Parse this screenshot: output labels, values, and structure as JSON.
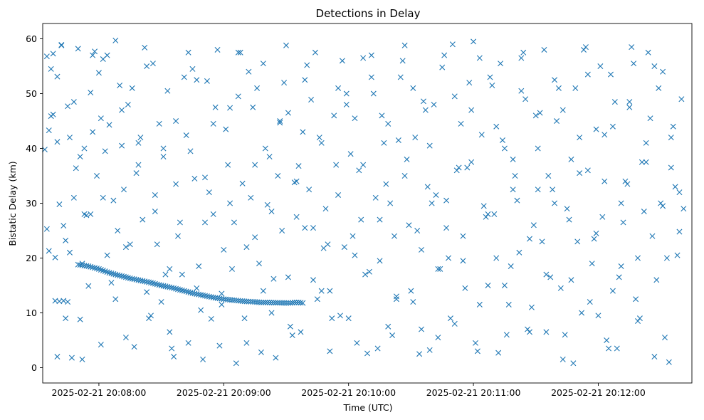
{
  "chart_data": {
    "type": "scatter",
    "title": "Detections in Delay",
    "xlabel": "Time (UTC)",
    "ylabel": "Bistatic Delay (km)",
    "x_tick_labels": [
      "2025-02-21 20:08:00",
      "2025-02-21 20:09:00",
      "2025-02-21 20:10:00",
      "2025-02-21 20:11:00",
      "2025-02-21 20:12:00"
    ],
    "y_tick_labels": [
      "0",
      "10",
      "20",
      "30",
      "40",
      "50",
      "60"
    ],
    "x_axis": "time",
    "xlim": [
      "2025-02-21 20:07:33",
      "2025-02-21 20:12:45"
    ],
    "ylim": [
      -2.8,
      62.8
    ],
    "grid": false,
    "marker": "x",
    "color": "#1f77b4",
    "track": {
      "description_visible": false,
      "x": [
        "20:07:39",
        "20:07:41",
        "20:07:43",
        "20:07:45",
        "20:07:50",
        "20:07:55",
        "20:08:00",
        "20:08:05",
        "20:08:10",
        "20:08:15",
        "20:08:20",
        "20:08:25",
        "20:08:30",
        "20:08:35",
        "20:08:40",
        "20:08:45",
        "20:08:50",
        "20:08:55",
        "20:09:00",
        "20:09:05",
        "20:09:10",
        "20:09:15",
        "20:09:18",
        "20:09:20",
        "20:09:30",
        "20:09:32",
        "20:09:34",
        "20:09:36",
        "20:09:38"
      ],
      "y": [
        12.2,
        12.1,
        12.2,
        12.0,
        18.8,
        18.5,
        18.0,
        17.3,
        16.8,
        16.3,
        15.9,
        15.5,
        15.0,
        14.6,
        14.1,
        13.6,
        13.2,
        12.8,
        12.5,
        12.3,
        12.1,
        12.0,
        11.9,
        11.9,
        11.8,
        11.8,
        11.9,
        11.9,
        11.8
      ]
    },
    "series": [
      {
        "x": [
          "20:07:35",
          "20:07:36",
          "20:07:38",
          "20:07:40",
          "20:07:42",
          "20:07:44",
          "20:07:46",
          "20:07:48",
          "20:07:50",
          "20:07:52",
          "20:07:55",
          "20:07:57",
          "20:08:00",
          "20:08:02",
          "20:08:05",
          "20:08:08",
          "20:08:11",
          "20:08:13",
          "20:08:16",
          "20:08:19",
          "20:08:22",
          "20:08:25",
          "20:08:27",
          "20:08:30",
          "20:08:33",
          "20:08:36",
          "20:08:39",
          "20:08:42",
          "20:08:45",
          "20:08:48",
          "20:08:51",
          "20:08:54",
          "20:08:57",
          "20:09:00",
          "20:09:03",
          "20:09:06",
          "20:09:09",
          "20:09:12",
          "20:09:15",
          "20:09:18",
          "20:09:21",
          "20:09:24",
          "20:09:27",
          "20:09:30",
          "20:09:33",
          "20:09:36",
          "20:09:39",
          "20:09:42",
          "20:09:45",
          "20:09:48",
          "20:09:51",
          "20:09:54",
          "20:09:57",
          "20:10:00",
          "20:10:03",
          "20:10:06",
          "20:10:09",
          "20:10:12",
          "20:10:15",
          "20:10:18",
          "20:10:21",
          "20:10:24",
          "20:10:27",
          "20:10:30",
          "20:10:33",
          "20:10:36",
          "20:10:39",
          "20:10:42",
          "20:10:45",
          "20:10:48",
          "20:10:51",
          "20:10:54",
          "20:10:57",
          "20:11:00",
          "20:11:03",
          "20:11:06",
          "20:11:09",
          "20:11:12",
          "20:11:15",
          "20:11:18",
          "20:11:21",
          "20:11:24",
          "20:11:27",
          "20:11:30",
          "20:11:33",
          "20:11:36",
          "20:11:39",
          "20:11:42",
          "20:11:45",
          "20:11:48",
          "20:11:51",
          "20:11:54",
          "20:11:57",
          "20:12:00",
          "20:12:03",
          "20:12:06",
          "20:12:09",
          "20:12:12",
          "20:12:15",
          "20:12:18",
          "20:12:21",
          "20:12:24",
          "20:12:27",
          "20:12:30",
          "20:12:33",
          "20:12:36",
          "20:12:39",
          "20:12:41"
        ],
        "y": [
          56.8,
          21.3,
          46.2,
          2.0,
          58.8,
          9.0,
          42.0,
          31.0,
          58.2,
          1.5,
          14.9,
          57.0,
          53.8,
          31.0,
          44.3,
          59.7,
          40.5,
          22.0,
          51.0,
          37.0,
          58.4,
          9.5,
          31.5,
          12.0,
          50.5,
          2.0,
          26.5,
          42.4,
          54.5,
          18.5,
          34.7,
          8.9,
          58.0,
          21.5,
          47.4,
          0.8,
          33.6,
          54.0,
          23.8,
          2.8,
          29.7,
          16.2,
          44.7,
          58.8,
          5.9,
          36.8,
          25.5,
          48.9,
          12.5,
          21.8,
          3.0,
          37.0,
          56.0,
          9.0,
          45.5,
          27.0,
          2.6,
          50.0,
          19.5,
          33.5,
          5.9,
          41.5,
          58.8,
          14.0,
          25.0,
          48.6,
          3.2,
          31.5,
          54.8,
          20.0,
          8.0,
          44.5,
          36.5,
          59.5,
          11.5,
          27.5,
          51.5,
          2.7,
          40.0,
          18.5,
          30.5,
          57.5,
          6.5,
          46.0,
          23.0,
          35.0,
          52.5,
          14.5,
          29.0,
          0.8,
          42.0,
          58.5,
          19.0,
          9.5,
          34.0,
          53.5,
          3.5,
          26.5,
          47.5,
          12.5,
          37.5,
          57.5,
          2.0,
          30.0,
          20.0,
          44.0,
          24.8,
          29.0
        ]
      },
      {
        "x": [
          "20:07:34",
          "20:07:37",
          "20:07:39",
          "20:07:41",
          "20:07:43",
          "20:07:45",
          "20:07:47",
          "20:07:49",
          "20:07:51",
          "20:07:53",
          "20:07:56",
          "20:07:58",
          "20:08:01",
          "20:08:03",
          "20:08:06",
          "20:08:09",
          "20:08:12",
          "20:08:14",
          "20:08:17",
          "20:08:20",
          "20:08:23",
          "20:08:26",
          "20:08:28",
          "20:08:31",
          "20:08:34",
          "20:08:37",
          "20:08:40",
          "20:08:43",
          "20:08:46",
          "20:08:49",
          "20:08:52",
          "20:08:55",
          "20:08:58",
          "20:09:01",
          "20:09:04",
          "20:09:07",
          "20:09:10",
          "20:09:13",
          "20:09:16",
          "20:09:19",
          "20:09:22",
          "20:09:25",
          "20:09:28",
          "20:09:31",
          "20:09:34",
          "20:09:37",
          "20:09:40",
          "20:09:43",
          "20:09:46",
          "20:09:49",
          "20:09:52",
          "20:09:55",
          "20:09:58",
          "20:10:01",
          "20:10:04",
          "20:10:07",
          "20:10:10",
          "20:10:13",
          "20:10:16",
          "20:10:19",
          "20:10:22",
          "20:10:25",
          "20:10:28",
          "20:10:31",
          "20:10:34",
          "20:10:37",
          "20:10:40",
          "20:10:43",
          "20:10:46",
          "20:10:49",
          "20:10:52",
          "20:10:55",
          "20:10:58",
          "20:11:01",
          "20:11:04",
          "20:11:07",
          "20:11:10",
          "20:11:13",
          "20:11:16",
          "20:11:19",
          "20:11:22",
          "20:11:25",
          "20:11:28",
          "20:11:31",
          "20:11:34",
          "20:11:37",
          "20:11:40",
          "20:11:43",
          "20:11:46",
          "20:11:49",
          "20:11:52",
          "20:11:55",
          "20:11:58",
          "20:12:01",
          "20:12:04",
          "20:12:07",
          "20:12:10",
          "20:12:13",
          "20:12:16",
          "20:12:19",
          "20:12:22",
          "20:12:25",
          "20:12:28",
          "20:12:31",
          "20:12:34",
          "20:12:37",
          "20:12:40"
        ],
        "y": [
          39.8,
          54.5,
          20.1,
          29.8,
          25.9,
          47.7,
          1.8,
          36.4,
          8.8,
          40.0,
          28.0,
          57.7,
          4.2,
          39.5,
          15.5,
          25.0,
          32.5,
          48.0,
          3.8,
          42.0,
          13.8,
          55.5,
          22.5,
          38.5,
          6.5,
          45.0,
          17.0,
          57.5,
          34.5,
          10.5,
          52.3,
          28.0,
          4.0,
          43.5,
          18.0,
          57.5,
          9.0,
          31.0,
          51.0,
          14.0,
          38.5,
          1.8,
          25.0,
          46.5,
          33.8,
          6.5,
          55.2,
          16.0,
          42.0,
          29.0,
          9.0,
          51.0,
          22.0,
          39.0,
          4.5,
          56.5,
          17.5,
          31.0,
          46.0,
          7.5,
          24.0,
          53.0,
          38.0,
          12.0,
          2.5,
          47.0,
          30.0,
          18.0,
          57.0,
          9.0,
          36.0,
          24.0,
          52.0,
          4.5,
          42.5,
          15.0,
          28.0,
          55.5,
          6.0,
          38.0,
          21.0,
          49.0,
          11.0,
          32.5,
          58.0,
          16.5,
          45.0,
          1.5,
          27.0,
          51.0,
          10.0,
          36.0,
          23.5,
          55.0,
          5.0,
          44.0,
          16.5,
          34.0,
          58.5,
          8.5,
          28.5,
          45.5,
          16.0,
          54.0,
          1.0,
          33.0,
          49.0
        ]
      },
      {
        "x": [
          "20:07:36",
          "20:07:38",
          "20:07:40",
          "20:07:44",
          "20:07:48",
          "20:07:52",
          "20:07:54",
          "20:07:57",
          "20:08:02",
          "20:08:04",
          "20:08:07",
          "20:08:10",
          "20:08:13",
          "20:08:18",
          "20:08:21",
          "20:08:24",
          "20:08:29",
          "20:08:32",
          "20:08:35",
          "20:08:38",
          "20:08:41",
          "20:08:44",
          "20:08:47",
          "20:08:50",
          "20:08:53",
          "20:08:56",
          "20:08:59",
          "20:09:02",
          "20:09:05",
          "20:09:08",
          "20:09:11",
          "20:09:14",
          "20:09:17",
          "20:09:20",
          "20:09:23",
          "20:09:26",
          "20:09:29",
          "20:09:32",
          "20:09:35",
          "20:09:38",
          "20:09:41",
          "20:09:44",
          "20:09:47",
          "20:09:50",
          "20:09:53",
          "20:09:56",
          "20:09:59",
          "20:10:02",
          "20:10:05",
          "20:10:08",
          "20:10:11",
          "20:10:14",
          "20:10:17",
          "20:10:20",
          "20:10:23",
          "20:10:26",
          "20:10:29",
          "20:10:32",
          "20:10:35",
          "20:10:38",
          "20:10:41",
          "20:10:44",
          "20:10:47",
          "20:10:50",
          "20:10:53",
          "20:10:56",
          "20:10:59",
          "20:11:02",
          "20:11:05",
          "20:11:08",
          "20:11:11",
          "20:11:14",
          "20:11:17",
          "20:11:20",
          "20:11:23",
          "20:11:26",
          "20:11:29",
          "20:11:32",
          "20:11:35",
          "20:11:38",
          "20:11:41",
          "20:11:44",
          "20:11:47",
          "20:11:50",
          "20:11:53",
          "20:11:56",
          "20:11:59",
          "20:12:02",
          "20:12:05",
          "20:12:08",
          "20:12:11",
          "20:12:14",
          "20:12:17",
          "20:12:20",
          "20:12:23",
          "20:12:26",
          "20:12:29",
          "20:12:32",
          "20:12:35",
          "20:12:38"
        ],
        "y": [
          43.3,
          57.3,
          53.1,
          23.2,
          48.5,
          19.0,
          27.8,
          43.0,
          56.3,
          20.5,
          30.5,
          51.5,
          5.5,
          35.5,
          27.0,
          9.0,
          44.5,
          17.0,
          3.5,
          24.0,
          53.0,
          39.5,
          14.5,
          1.5,
          32.0,
          47.5,
          11.5,
          37.0,
          26.5,
          57.5,
          4.5,
          47.5,
          19.0,
          40.0,
          10.0,
          35.0,
          52.0,
          7.5,
          27.5,
          43.0,
          32.5,
          57.5,
          14.0,
          22.5,
          46.0,
          9.5,
          50.0,
          24.0,
          36.0,
          17.0,
          53.0,
          3.5,
          41.0,
          30.0,
          12.5,
          56.0,
          26.0,
          42.0,
          7.0,
          33.0,
          48.0,
          18.0,
          25.5,
          59.0,
          36.5,
          14.5,
          47.0,
          3.0,
          29.5,
          53.0,
          20.0,
          41.5,
          11.5,
          35.0,
          56.5,
          7.0,
          26.0,
          46.5,
          17.0,
          32.5,
          51.0,
          6.0,
          38.0,
          23.0,
          58.0,
          12.0,
          43.5,
          27.5,
          3.5,
          48.5,
          18.5,
          33.5,
          55.5,
          9.0,
          41.0,
          24.0,
          51.0,
          5.5,
          36.5,
          20.5
        ]
      },
      {
        "x": [
          "20:07:35",
          "20:07:37",
          "20:07:40",
          "20:07:42",
          "20:07:46",
          "20:07:51",
          "20:07:53",
          "20:07:56",
          "20:07:59",
          "20:08:01",
          "20:08:04",
          "20:08:08",
          "20:08:11",
          "20:08:15",
          "20:08:19",
          "20:08:23",
          "20:08:27",
          "20:08:31",
          "20:08:34",
          "20:08:37",
          "20:08:43",
          "20:08:47",
          "20:08:51",
          "20:08:55",
          "20:08:59",
          "20:09:03",
          "20:09:07",
          "20:09:11",
          "20:09:15",
          "20:09:19",
          "20:09:23",
          "20:09:27",
          "20:09:31",
          "20:09:35",
          "20:09:39",
          "20:09:43",
          "20:09:47",
          "20:09:51",
          "20:09:55",
          "20:09:59",
          "20:10:03",
          "20:10:07",
          "20:10:11",
          "20:10:15",
          "20:10:19",
          "20:10:23",
          "20:10:27",
          "20:10:31",
          "20:10:35",
          "20:10:39",
          "20:10:43",
          "20:10:47",
          "20:10:51",
          "20:10:55",
          "20:10:59",
          "20:11:03",
          "20:11:07",
          "20:11:11",
          "20:11:15",
          "20:11:19",
          "20:11:23",
          "20:11:27",
          "20:11:31",
          "20:11:35",
          "20:11:39",
          "20:11:43",
          "20:11:47",
          "20:11:51",
          "20:11:55",
          "20:11:59",
          "20:12:03",
          "20:12:07",
          "20:12:11",
          "20:12:15",
          "20:12:19",
          "20:12:23",
          "20:12:27",
          "20:12:31",
          "20:12:35",
          "20:12:39"
        ],
        "y": [
          25.3,
          45.9,
          41.2,
          58.9,
          21.0,
          38.5,
          28.0,
          50.2,
          35.0,
          45.5,
          57.0,
          12.5,
          47.0,
          22.5,
          41.0,
          55.0,
          28.5,
          40.0,
          18.0,
          33.5,
          4.5,
          52.5,
          26.5,
          44.5,
          13.5,
          30.0,
          49.5,
          22.0,
          37.0,
          55.5,
          28.5,
          45.0,
          16.5,
          34.0,
          52.5,
          25.5,
          41.0,
          14.0,
          31.5,
          48.0,
          20.5,
          37.0,
          57.0,
          27.0,
          44.5,
          13.0,
          35.0,
          51.0,
          21.5,
          40.5,
          5.5,
          30.5,
          49.5,
          19.5,
          37.5,
          56.5,
          28.0,
          44.0,
          15.0,
          32.5,
          50.5,
          23.5,
          40.0,
          6.5,
          30.0,
          47.0,
          16.0,
          35.5,
          53.5,
          24.5,
          42.5,
          14.0,
          30.0,
          48.5,
          20.0,
          37.5,
          55.0,
          29.5,
          42.0,
          32.0
        ]
      }
    ]
  }
}
